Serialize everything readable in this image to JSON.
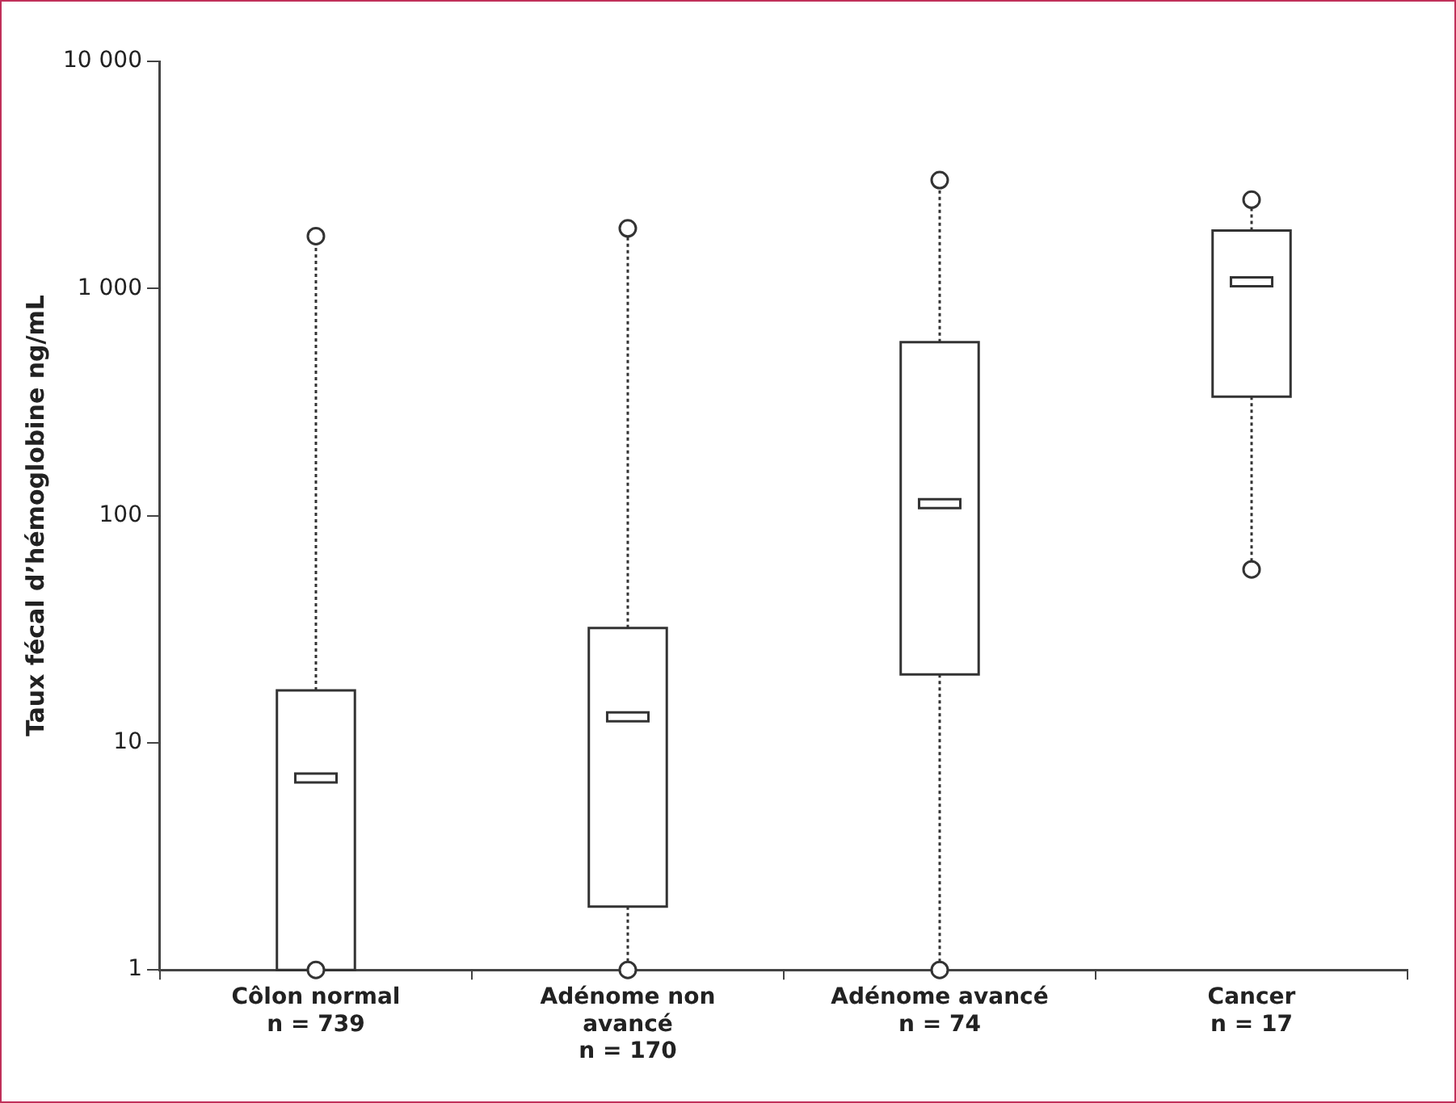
{
  "chart_data": {
    "type": "box",
    "ylabel": "Taux fécal d’hémoglobine ng/mL",
    "categories": [
      "Côlon normal\nn = 739",
      "Adénome non\navancé\nn = 170",
      "Adénome avancé\nn = 74",
      "Cancer\nn = 17"
    ],
    "boxes": [
      {
        "low": 1,
        "q1": 1,
        "median": 7,
        "q3": 17,
        "high": 1700,
        "outliers": [
          1,
          1700
        ]
      },
      {
        "low": 1,
        "q1": 1.9,
        "median": 13,
        "q3": 32,
        "high": 1840,
        "outliers": [
          1,
          1840
        ]
      },
      {
        "low": 1,
        "q1": 20,
        "median": 113,
        "q3": 580,
        "high": 3000,
        "outliers": [
          1,
          3000
        ]
      },
      {
        "low": 58,
        "q1": 334,
        "median": 1070,
        "q3": 1800,
        "high": 2460,
        "outliers": [
          58,
          2460
        ]
      }
    ],
    "log": true,
    "ylim": [
      1,
      10000
    ],
    "yticks": [
      1,
      10,
      100,
      {
        "value": 1000,
        "label": "1 000"
      },
      {
        "value": 10000,
        "label": "10 000"
      }
    ]
  }
}
